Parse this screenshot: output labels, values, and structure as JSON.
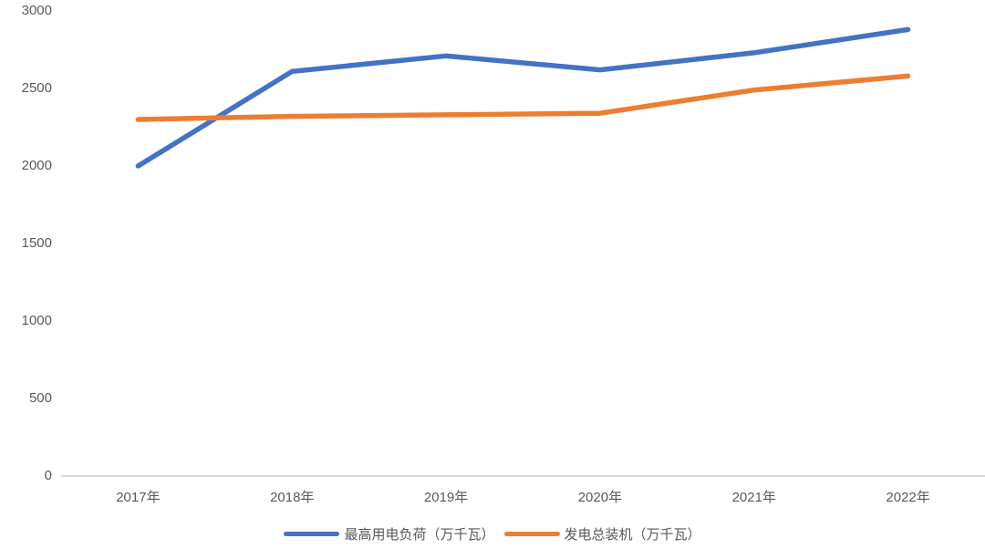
{
  "chart_data": {
    "type": "line",
    "title": "",
    "categories": [
      "2017年",
      "2018年",
      "2019年",
      "2020年",
      "2021年",
      "2022年"
    ],
    "series": [
      {
        "name": "最高用电负荷（万千瓦）",
        "color": "#4472C4",
        "values": [
          2000,
          2610,
          2710,
          2620,
          2730,
          2880
        ]
      },
      {
        "name": "发电总装机（万千瓦）",
        "color": "#ED7D31",
        "values": [
          2300,
          2320,
          2330,
          2340,
          2490,
          2580
        ]
      }
    ],
    "yticks": [
      0,
      500,
      1000,
      1500,
      2000,
      2500,
      3000
    ],
    "ylim": [
      0,
      3000
    ],
    "grid": false,
    "legend_position": "bottom"
  },
  "colors": {
    "axis_line": "#D9D9D9",
    "tick_label": "#595959",
    "background": "#FFFFFF"
  }
}
